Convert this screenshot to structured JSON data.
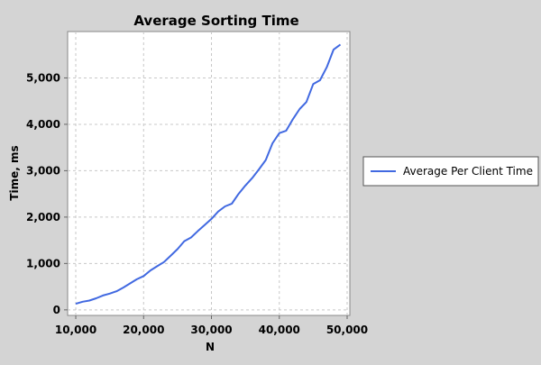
{
  "chart_data": {
    "type": "line",
    "title": "Average Sorting Time",
    "xlabel": "N",
    "ylabel": "Time, ms",
    "xlim": [
      8800,
      50400
    ],
    "ylim": [
      -120,
      6000
    ],
    "xticks": [
      10000,
      20000,
      30000,
      40000,
      50000
    ],
    "xtick_labels": [
      "10,000",
      "20,000",
      "30,000",
      "40,000",
      "50,000"
    ],
    "yticks": [
      0,
      1000,
      2000,
      3000,
      4000,
      5000
    ],
    "ytick_labels": [
      "0",
      "1,000",
      "2,000",
      "3,000",
      "4,000",
      "5,000"
    ],
    "grid": true,
    "legend_position": "right",
    "colors": {
      "series": "#4169e1",
      "plot_bg": "#ffffff",
      "page_bg": "#d4d4d4",
      "grid": "#c8c8c8"
    },
    "series": [
      {
        "name": "Average Per Client Time",
        "x": [
          10000,
          11000,
          12000,
          13000,
          14000,
          15000,
          16000,
          17000,
          18000,
          19000,
          20000,
          21000,
          22000,
          23000,
          24000,
          25000,
          26000,
          27000,
          28000,
          29000,
          30000,
          31000,
          32000,
          33000,
          34000,
          35000,
          36000,
          37000,
          38000,
          39000,
          40000,
          41000,
          42000,
          43000,
          44000,
          45000,
          46000,
          47000,
          48000,
          49000
        ],
        "y": [
          130,
          175,
          200,
          250,
          310,
          350,
          400,
          480,
          570,
          660,
          730,
          850,
          940,
          1030,
          1170,
          1310,
          1480,
          1560,
          1700,
          1830,
          1960,
          2120,
          2230,
          2290,
          2500,
          2680,
          2840,
          3030,
          3230,
          3590,
          3810,
          3860,
          4110,
          4330,
          4480,
          4870,
          4950,
          5230,
          5610,
          5720
        ]
      }
    ]
  }
}
